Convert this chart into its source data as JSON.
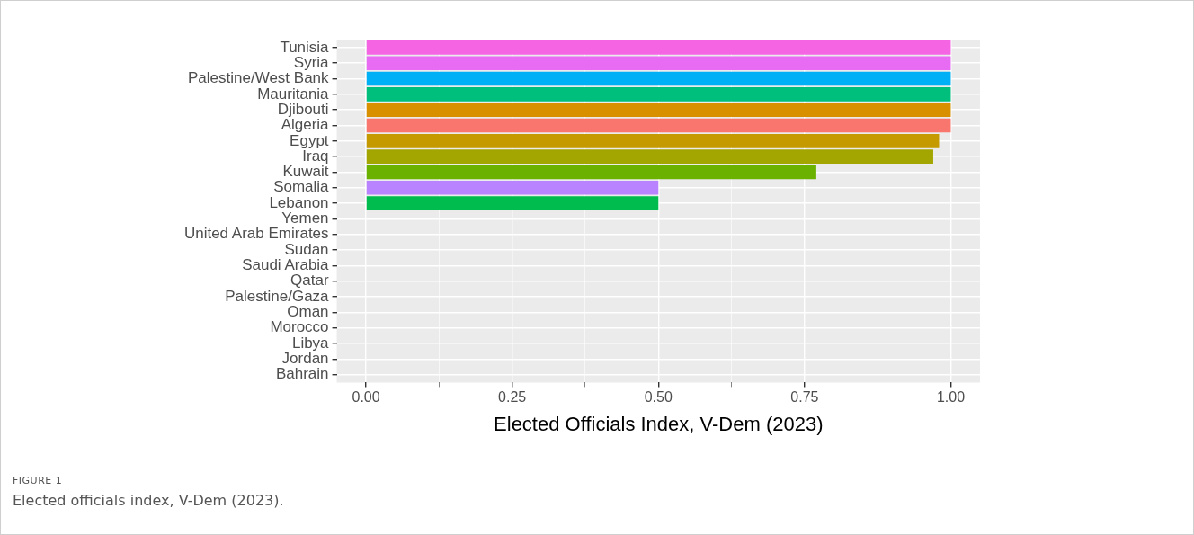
{
  "chart_data": {
    "type": "bar",
    "orientation": "horizontal",
    "categories": [
      "Tunisia",
      "Syria",
      "Palestine/West Bank",
      "Mauritania",
      "Djibouti",
      "Algeria",
      "Egypt",
      "Iraq",
      "Kuwait",
      "Somalia",
      "Lebanon",
      "Yemen",
      "United Arab Emirates",
      "Sudan",
      "Saudi Arabia",
      "Qatar",
      "Palestine/Gaza",
      "Oman",
      "Morocco",
      "Libya",
      "Jordan",
      "Bahrain"
    ],
    "values": [
      1,
      1,
      1,
      1,
      1,
      1,
      0.98,
      0.97,
      0.77,
      0.5,
      0.5,
      0,
      0,
      0,
      0,
      0,
      0,
      0,
      0,
      0,
      0,
      0
    ],
    "colors": [
      "#f564e3",
      "#e76bf3",
      "#00b0f6",
      "#00bf7d",
      "#d89000",
      "#f8766d",
      "#c49a00",
      "#a3a500",
      "#6bb100",
      "#b983ff",
      "#00bb4e",
      null,
      null,
      null,
      null,
      null,
      null,
      null,
      null,
      null,
      null,
      null
    ],
    "xlabel": "Elected Officials Index, V-Dem (2023)",
    "xlim": [
      -0.05,
      1.05
    ],
    "xticks": [
      {
        "value": 0,
        "label": "0.00"
      },
      {
        "value": 0.125,
        "label": null
      },
      {
        "value": 0.25,
        "label": "0.25"
      },
      {
        "value": 0.375,
        "label": null
      },
      {
        "value": 0.5,
        "label": "0.50"
      },
      {
        "value": 0.625,
        "label": null
      },
      {
        "value": 0.75,
        "label": "0.75"
      },
      {
        "value": 0.875,
        "label": null
      },
      {
        "value": 1,
        "label": "1.00"
      }
    ],
    "grid": true,
    "annotations": [
      "FIGURE 1",
      "Elected officials index, V-Dem (2023)."
    ]
  }
}
